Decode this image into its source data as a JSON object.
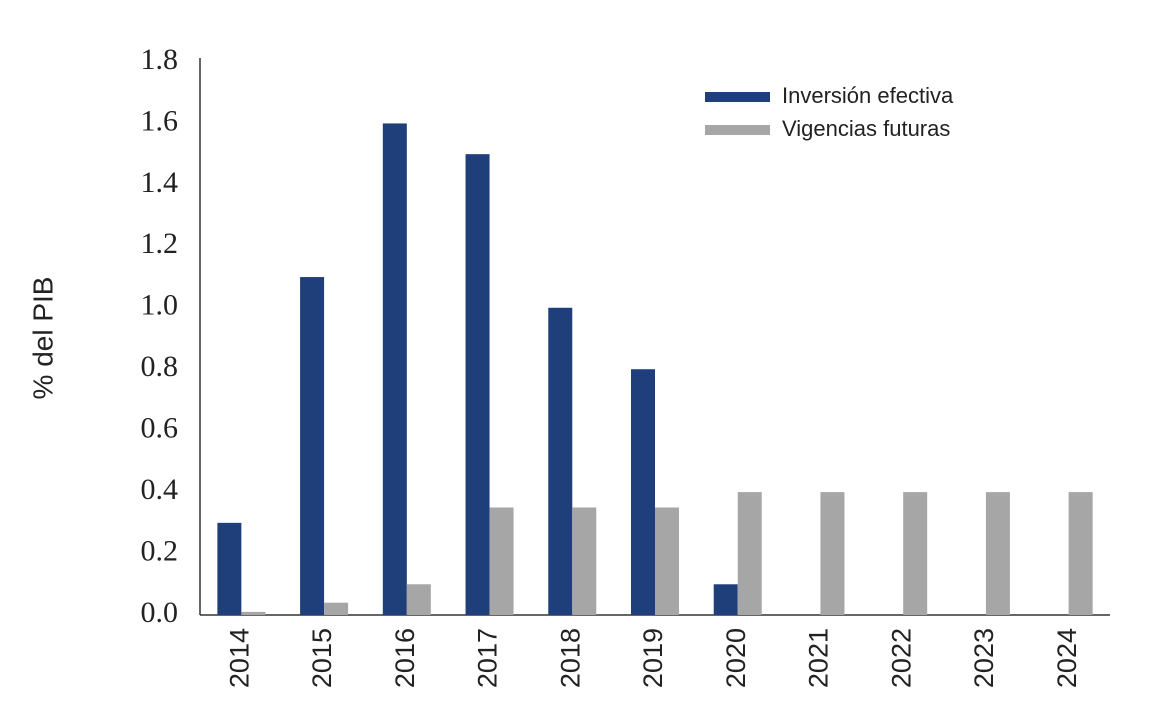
{
  "chart_data": {
    "type": "bar",
    "ylabel": "% del PIB",
    "categories": [
      "2014",
      "2015",
      "2016",
      "2017",
      "2018",
      "2019",
      "2020",
      "2021",
      "2022",
      "2023",
      "2024"
    ],
    "series": [
      {
        "name": "Inversión efectiva",
        "color": "#1f3f7a",
        "values": [
          0.3,
          1.1,
          1.6,
          1.5,
          1.0,
          0.8,
          0.1,
          0,
          0,
          0,
          0
        ]
      },
      {
        "name": "Vigencias futuras",
        "color": "#a6a6a6",
        "values": [
          0.01,
          0.04,
          0.1,
          0.35,
          0.35,
          0.35,
          0.4,
          0.4,
          0.4,
          0.4,
          0.4
        ]
      }
    ],
    "ylim": [
      0,
      1.8
    ],
    "yticks": [
      {
        "value": 0,
        "label": "0.0"
      },
      0.2,
      0.4,
      0.6,
      0.8,
      {
        "value": 1,
        "label": "1.0"
      },
      1.2,
      1.4,
      1.6,
      1.8
    ],
    "grid": false,
    "legend": "upper right"
  }
}
